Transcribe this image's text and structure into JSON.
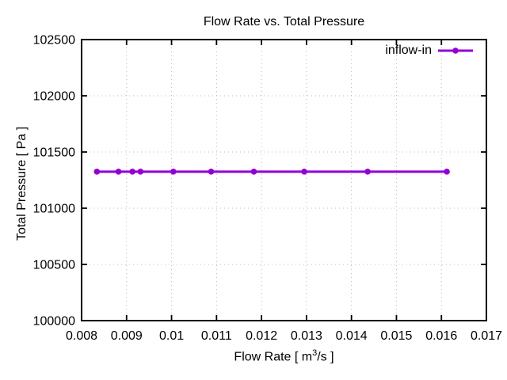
{
  "chart_data": {
    "type": "line",
    "title": "Flow Rate vs. Total Pressure",
    "xlabel": {
      "pre": "Flow Rate [ m",
      "sup": "3",
      "post": "/s ]"
    },
    "ylabel": "Total Pressure [ Pa ]",
    "xlim": [
      0.008,
      0.017
    ],
    "ylim": [
      100000,
      102500
    ],
    "x_ticks": [
      0.008,
      0.009,
      0.01,
      0.011,
      0.012,
      0.013,
      0.014,
      0.015,
      0.016,
      0.017
    ],
    "x_tick_labels": [
      "0.008",
      "0.009",
      "0.01",
      "0.011",
      "0.012",
      "0.013",
      "0.014",
      "0.015",
      "0.016",
      "0.017"
    ],
    "y_ticks": [
      100000,
      100500,
      101000,
      101500,
      102000,
      102500
    ],
    "y_tick_labels": [
      "100000",
      "100500",
      "101000",
      "101500",
      "102000",
      "102500"
    ],
    "grid": true,
    "legend_position": "top-right-inside",
    "colors": {
      "axis": "#000000",
      "grid": "#bbbbbb",
      "background": "#ffffff"
    },
    "series": [
      {
        "name": "inflow-in",
        "color": "#9400d3",
        "marker": "filled-circle",
        "x": [
          0.00834,
          0.00882,
          0.00913,
          0.00931,
          0.01004,
          0.01088,
          0.01183,
          0.01295,
          0.01436,
          0.01612
        ],
        "y": [
          101325,
          101325,
          101325,
          101325,
          101325,
          101325,
          101325,
          101325,
          101325,
          101325
        ]
      }
    ]
  }
}
